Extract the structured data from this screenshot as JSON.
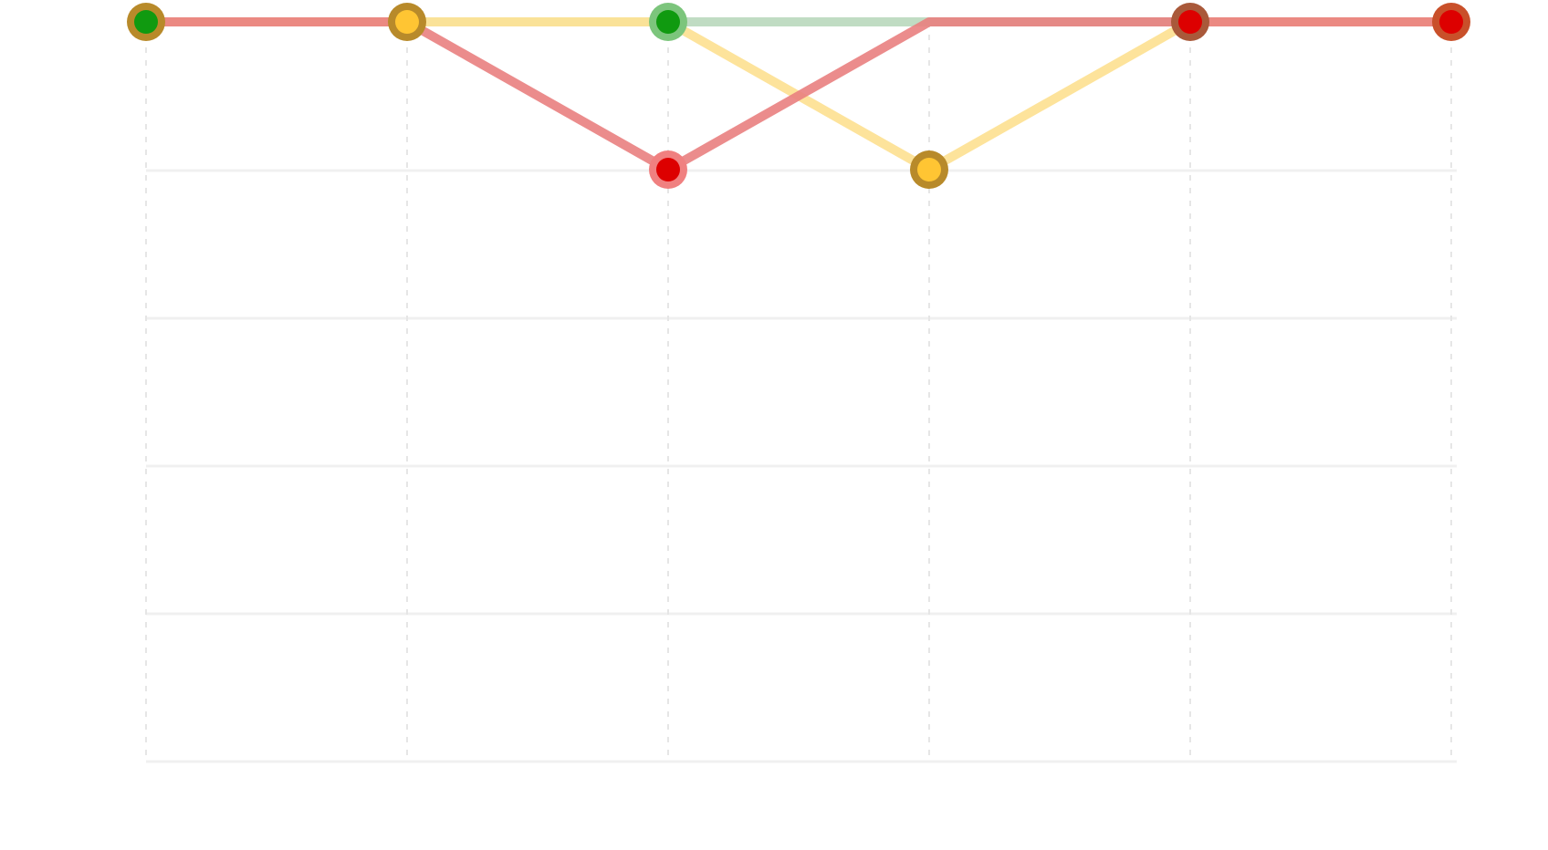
{
  "chart_data": {
    "type": "line",
    "categories": [
      "",
      "",
      "",
      "",
      "",
      ""
    ],
    "ylim": [
      0,
      5
    ],
    "y_reversed": true,
    "grid": true,
    "series": [
      {
        "color": "#8fbf8f",
        "line_color": "#b9d8bd",
        "values": [
          1,
          1,
          1,
          1,
          1,
          1
        ],
        "point_fill": "#1a9e1a",
        "point_ring": "#8fcf8f"
      },
      {
        "color": "#ffd24d",
        "line_color": "#fde196",
        "values": [
          1,
          1,
          1,
          2,
          1,
          1
        ],
        "point_fill": "#ffc533",
        "point_ring": "#bb8c25"
      },
      {
        "color": "#e05050",
        "line_color": "#e98080",
        "values": [
          1,
          1,
          2,
          1,
          1,
          1
        ],
        "point_fill": "#dd0000",
        "point_ring": "#f08080"
      }
    ],
    "points": [
      {
        "x_index": 0,
        "y": 1,
        "fill": "#109a10",
        "ring": "#b88a2a"
      },
      {
        "x_index": 1,
        "y": 1,
        "fill": "#ffc533",
        "ring": "#b88a2a"
      },
      {
        "x_index": 2,
        "y": 1,
        "fill": "#109a10",
        "ring": "#7cc57c"
      },
      {
        "x_index": 2,
        "y": 2,
        "fill": "#dd0000",
        "ring": "#f08080"
      },
      {
        "x_index": 3,
        "y": 2,
        "fill": "#ffc533",
        "ring": "#b88a2a"
      },
      {
        "x_index": 4,
        "y": 1,
        "fill": "#dd0000",
        "ring": "#a9593a"
      },
      {
        "x_index": 5,
        "y": 1,
        "fill": "#dd0000",
        "ring": "#c9502a"
      }
    ]
  }
}
